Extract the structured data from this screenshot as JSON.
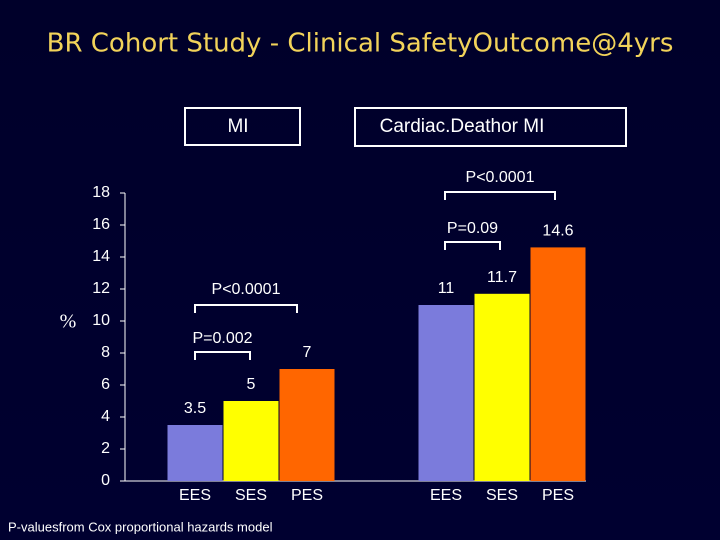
{
  "chart_data": {
    "type": "bar",
    "title": "BR Cohort Study - Clinical SafetyOutcome@4yrs",
    "y_label": "%",
    "groups": [
      {
        "label": "MI",
        "categories": [
          "EES",
          "SES",
          "PES"
        ],
        "values": [
          3.5,
          5,
          7
        ]
      },
      {
        "label": "Cardiac.Deathor MI",
        "categories": [
          "EES",
          "SES",
          "PES"
        ],
        "values": [
          11,
          11.7,
          14.6
        ]
      }
    ],
    "colors": [
      "#7b7bdc",
      "#ffff00",
      "#ff6600"
    ],
    "ylim": [
      0,
      18
    ],
    "yticks": [
      0,
      2,
      4,
      6,
      8,
      10,
      12,
      14,
      16,
      18
    ],
    "annotations": [
      "P=0.002",
      "P<0.0001",
      "P=0.09",
      "P<0.0001"
    ],
    "footnote": "P-valuesfrom Cox proportional hazards model"
  }
}
